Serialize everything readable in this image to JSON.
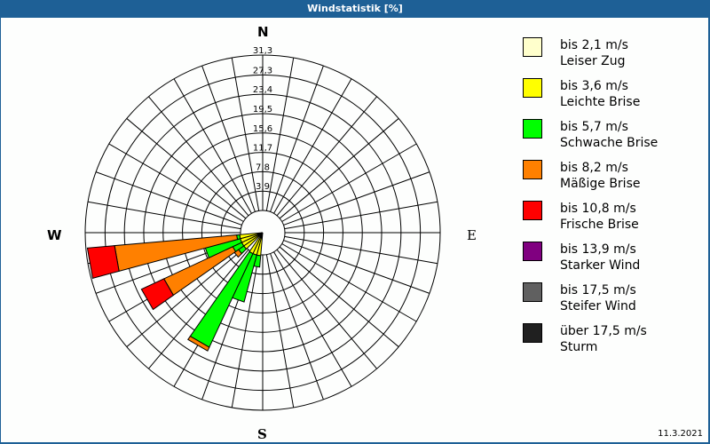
{
  "header": {
    "title": "Windstatistik [%]"
  },
  "compass": {
    "n": "N",
    "e": "E",
    "s": "S",
    "w": "W"
  },
  "ring_labels": [
    "3,9",
    "7,8",
    "11,7",
    "15,6",
    "19,5",
    "23,4",
    "27,3",
    "31,3"
  ],
  "legend": {
    "items": [
      {
        "range": "bis 2,1 m/s",
        "name": "Leiser Zug",
        "color": "#ffffcc"
      },
      {
        "range": "bis 3,6 m/s",
        "name": "Leichte Brise",
        "color": "#ffff00"
      },
      {
        "range": "bis 5,7 m/s",
        "name": "Schwache Brise",
        "color": "#00ff00"
      },
      {
        "range": "bis 8,2 m/s",
        "name": "Mäßige Brise",
        "color": "#ff8000"
      },
      {
        "range": "bis 10,8 m/s",
        "name": "Frische Brise",
        "color": "#ff0000"
      },
      {
        "range": "bis 13,9 m/s",
        "name": "Starker Wind",
        "color": "#800080"
      },
      {
        "range": "bis 17,5 m/s",
        "name": "Steifer Wind",
        "color": "#606060"
      },
      {
        "range": "über 17,5 m/s",
        "name": "Sturm",
        "color": "#202020"
      }
    ]
  },
  "footer": {
    "date": "11.3.2021"
  },
  "chart_data": {
    "type": "wind-rose",
    "title": "Windstatistik [%]",
    "radial_ticks": [
      3.9,
      7.8,
      11.7,
      15.6,
      19.5,
      23.4,
      27.3,
      31.3
    ],
    "radial_max": 31.3,
    "sectors_deg_step": 10,
    "speed_classes": [
      "bis 2,1 m/s",
      "bis 3,6 m/s",
      "bis 5,7 m/s",
      "bis 8,2 m/s",
      "bis 10,8 m/s",
      "bis 13,9 m/s",
      "bis 17,5 m/s",
      "über 17,5 m/s"
    ],
    "colors": [
      "#ffffcc",
      "#ffff00",
      "#00ff00",
      "#ff8000",
      "#ff0000",
      "#800080",
      "#606060",
      "#202020"
    ],
    "sectors": [
      {
        "dir": 190,
        "cumulative": [
          0,
          0.2,
          2.5,
          2.5,
          2.5,
          2.5,
          2.5,
          2.5
        ]
      },
      {
        "dir": 200,
        "cumulative": [
          0,
          0.2,
          10.0,
          10.0,
          10.0,
          10.0,
          10.0,
          10.0
        ]
      },
      {
        "dir": 210,
        "cumulative": [
          0,
          0.2,
          21.0,
          21.8,
          21.8,
          21.8,
          21.8,
          21.8
        ]
      },
      {
        "dir": 230,
        "cumulative": [
          0,
          0.2,
          1.5,
          2.5,
          2.5,
          2.5,
          2.5,
          2.5
        ]
      },
      {
        "dir": 240,
        "cumulative": [
          0,
          0.2,
          2.2,
          17.5,
          22.5,
          22.5,
          22.5,
          22.5
        ]
      },
      {
        "dir": 250,
        "cumulative": [
          0,
          0.2,
          7.5,
          7.5,
          7.5,
          7.5,
          7.5,
          7.5
        ]
      },
      {
        "dir": 260,
        "cumulative": [
          0,
          0.2,
          0.8,
          25.5,
          31.0,
          31.0,
          31.0,
          31.0
        ]
      }
    ]
  }
}
